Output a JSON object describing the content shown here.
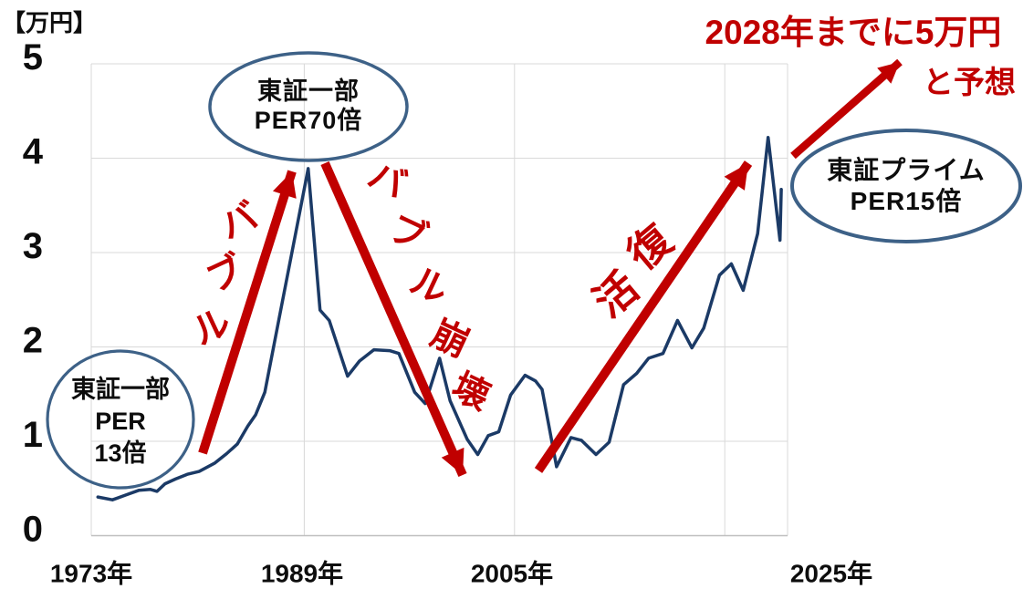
{
  "chart_data": {
    "type": "line",
    "unit_label": "【万円】",
    "x_tick_labels": [
      "1973年",
      "1989年",
      "2005年",
      "2025年"
    ],
    "y_tick_labels": [
      "0",
      "1",
      "2",
      "3",
      "4",
      "5"
    ],
    "xlim": [
      1973,
      2026
    ],
    "ylim": [
      0,
      5
    ],
    "grid": {
      "show": true,
      "h_values": [
        1,
        2,
        3,
        4,
        5
      ],
      "v_years": [
        1989,
        2005,
        2021
      ]
    },
    "legend": "none",
    "series": [
      {
        "points": [
          [
            1973.3,
            0.41
          ],
          [
            1974.4,
            0.38
          ],
          [
            1975.4,
            0.43
          ],
          [
            1976.4,
            0.48
          ],
          [
            1977.3,
            0.49
          ],
          [
            1977.8,
            0.47
          ],
          [
            1978.4,
            0.55
          ],
          [
            1979.2,
            0.6
          ],
          [
            1980.1,
            0.65
          ],
          [
            1981.0,
            0.68
          ],
          [
            1982.2,
            0.77
          ],
          [
            1983.1,
            0.87
          ],
          [
            1983.9,
            0.97
          ],
          [
            1984.7,
            1.16
          ],
          [
            1985.3,
            1.28
          ],
          [
            1986.0,
            1.52
          ],
          [
            1987.1,
            2.31
          ],
          [
            1988.2,
            3.1
          ],
          [
            1989.3,
            3.89
          ],
          [
            1990.2,
            2.39
          ],
          [
            1990.9,
            2.28
          ],
          [
            1992.3,
            1.69
          ],
          [
            1993.2,
            1.85
          ],
          [
            1994.3,
            1.97
          ],
          [
            1995.5,
            1.96
          ],
          [
            1996.2,
            1.93
          ],
          [
            1997.4,
            1.52
          ],
          [
            1998.2,
            1.4
          ],
          [
            1999.3,
            1.88
          ],
          [
            2000.1,
            1.43
          ],
          [
            2001.4,
            1.02
          ],
          [
            2002.2,
            0.86
          ],
          [
            2003.0,
            1.06
          ],
          [
            2003.8,
            1.1
          ],
          [
            2004.7,
            1.49
          ],
          [
            2005.8,
            1.7
          ],
          [
            2006.6,
            1.64
          ],
          [
            2007.1,
            1.55
          ],
          [
            2008.2,
            0.73
          ],
          [
            2009.3,
            1.04
          ],
          [
            2010.1,
            1.01
          ],
          [
            2011.2,
            0.86
          ],
          [
            2012.2,
            0.99
          ],
          [
            2013.3,
            1.6
          ],
          [
            2014.3,
            1.72
          ],
          [
            2015.2,
            1.88
          ],
          [
            2016.3,
            1.93
          ],
          [
            2017.4,
            2.28
          ],
          [
            2018.5,
            1.99
          ],
          [
            2019.4,
            2.2
          ],
          [
            2020.6,
            2.76
          ],
          [
            2021.5,
            2.88
          ],
          [
            2022.4,
            2.6
          ],
          [
            2023.5,
            3.2
          ],
          [
            2024.3,
            4.22
          ],
          [
            2025.2,
            3.13
          ],
          [
            2025.3,
            3.67
          ]
        ]
      }
    ],
    "annotations": {
      "trend_labels": [
        "バブル",
        "バブル崩壊",
        "復活"
      ],
      "forecast_label": {
        "line1": "2028年までに5万円",
        "line2": "と予想",
        "color": "#C00000"
      },
      "callouts": [
        {
          "lines": [
            "東証一部",
            "PER",
            "13倍"
          ]
        },
        {
          "lines": [
            "東証一部",
            "PER70倍"
          ]
        },
        {
          "lines": [
            "東証プライム",
            "PER15倍"
          ]
        }
      ]
    },
    "colors": {
      "line": "#1B3A66",
      "annotation": "#C00000",
      "callout_border": "#3D6187",
      "grid": "#D9D9D9",
      "axis": "#BFBFBF",
      "text": "#0D0D0D"
    }
  }
}
